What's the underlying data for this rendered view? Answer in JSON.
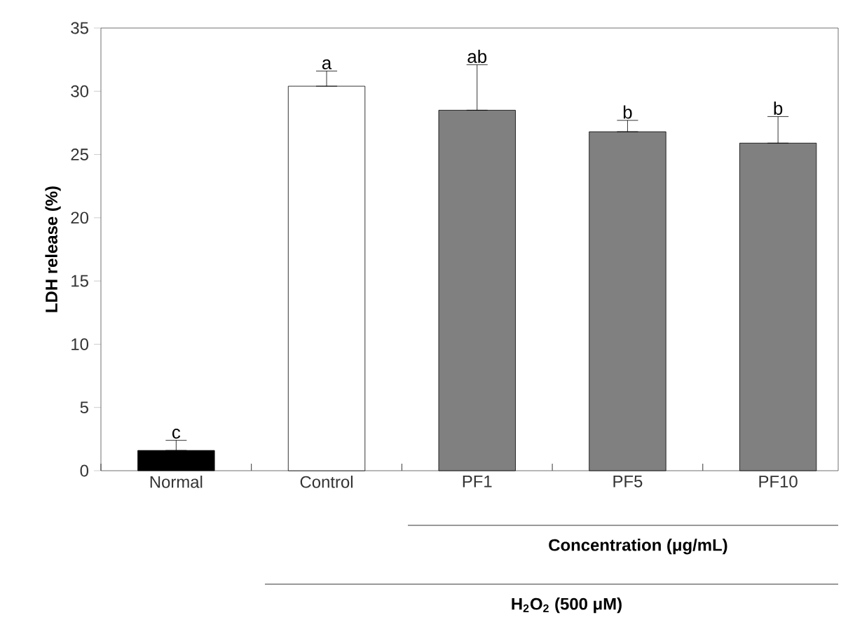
{
  "chart_data": {
    "type": "bar",
    "ylabel": "LDH release (%)",
    "categories": [
      "Normal",
      "Control",
      "PF1",
      "PF5",
      "PF10"
    ],
    "values": [
      1.6,
      30.4,
      28.5,
      26.8,
      25.9
    ],
    "colors": [
      "#000000",
      "#ffffff",
      "#808080",
      "#808080",
      "#808080"
    ],
    "errors": [
      [
        1.6,
        2.4
      ],
      [
        30.4,
        31.6
      ],
      [
        28.5,
        32.1
      ],
      [
        26.8,
        27.7
      ],
      [
        25.9,
        28.0
      ]
    ],
    "ylim": [
      0,
      35
    ],
    "yticks": [
      0,
      5,
      10,
      15,
      20,
      25,
      30,
      35
    ],
    "grid": false,
    "annotations": [
      {
        "text": "c",
        "x": "Normal",
        "y": 2.4
      },
      {
        "text": "a",
        "x": "Control",
        "y": 31.6
      },
      {
        "text": "ab",
        "x": "PF1",
        "y": 32.1
      },
      {
        "text": "b",
        "x": "PF5",
        "y": 27.7
      },
      {
        "text": "b",
        "x": "PF10",
        "y": 28.0
      },
      "**Concentration (μg/mL)**",
      "**H$_{2}$O$_{2}$ (500 μM)**"
    ]
  }
}
